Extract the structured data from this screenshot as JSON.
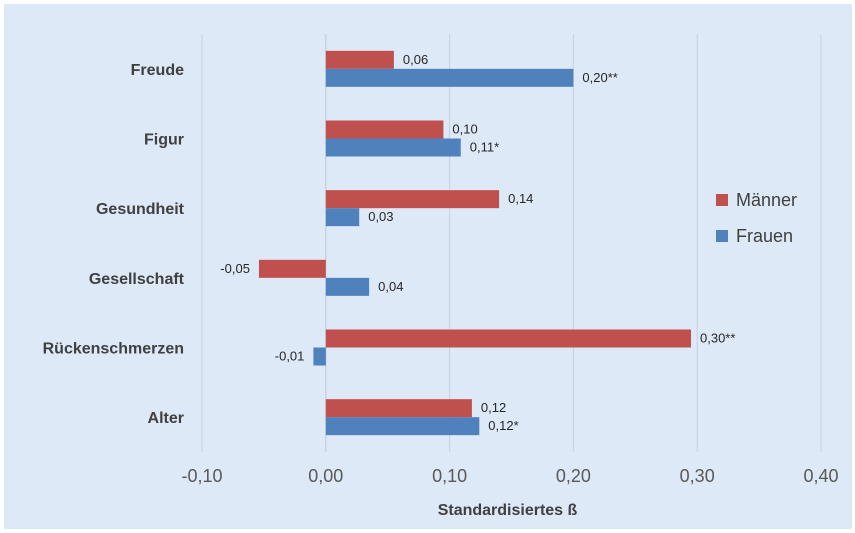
{
  "chart_data": {
    "type": "bar",
    "orientation": "horizontal",
    "categories": [
      "Freude",
      "Figur",
      "Gesundheit",
      "Gesellschaft",
      "Rückenschmerzen",
      "Alter"
    ],
    "series": [
      {
        "name": "Männer",
        "color": "#c0504d",
        "values": [
          0.055,
          0.095,
          0.14,
          -0.054,
          0.295,
          0.118
        ],
        "labels": [
          "0,06",
          "0,10",
          "0,14",
          "-0,05",
          "0,30**",
          "0,12"
        ]
      },
      {
        "name": "Frauen",
        "color": "#4f81bd",
        "values": [
          0.2,
          0.109,
          0.027,
          0.035,
          -0.01,
          0.124
        ],
        "labels": [
          "0,20**",
          "0,11*",
          "0,03",
          "0,04",
          "-0,01",
          "0,12*"
        ]
      }
    ],
    "xlim": [
      -0.1,
      0.4
    ],
    "xticks": [
      -0.1,
      0.0,
      0.1,
      0.2,
      0.3,
      0.4
    ],
    "xtick_labels": [
      "-0,10",
      "0,00",
      "0,10",
      "0,20",
      "0,30",
      "0,40"
    ],
    "xlabel": "Standardisiertes ß",
    "grid": "vertical",
    "legend": "right"
  }
}
